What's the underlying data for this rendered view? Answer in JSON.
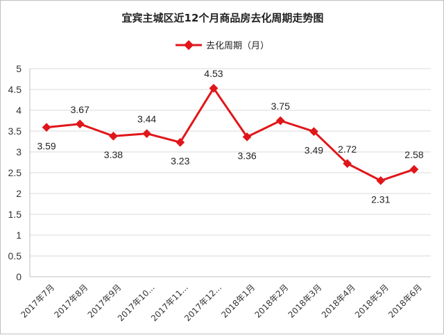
{
  "chart_data": {
    "type": "line",
    "title": "宜宾主城区近12个月商品房去化周期走势图",
    "categories": [
      "2017年7月",
      "2017年8月",
      "2017年9月",
      "2017年10...",
      "2017年11...",
      "2017年12...",
      "2018年1月",
      "2018年2月",
      "2018年3月",
      "2018年4月",
      "2018年5月",
      "2018年6月"
    ],
    "series": [
      {
        "name": "去化周期（月）",
        "values": [
          3.59,
          3.67,
          3.38,
          3.44,
          3.23,
          4.53,
          3.36,
          3.75,
          3.49,
          2.72,
          2.31,
          2.58
        ],
        "data_labels": [
          "3.59",
          "3.67",
          "3.38",
          "3.44",
          "3.23",
          "4.53",
          "3.36",
          "3.75",
          "3.49",
          "2.72",
          "2.31",
          "2.58"
        ]
      }
    ],
    "yticks": [
      "0",
      "0.5",
      "1",
      "1.5",
      "2",
      "2.5",
      "3",
      "3.5",
      "4",
      "4.5",
      "5"
    ],
    "ylim": [
      0,
      5
    ],
    "grid": true,
    "legend": "top",
    "colors": {
      "series": "#e0161a"
    }
  }
}
